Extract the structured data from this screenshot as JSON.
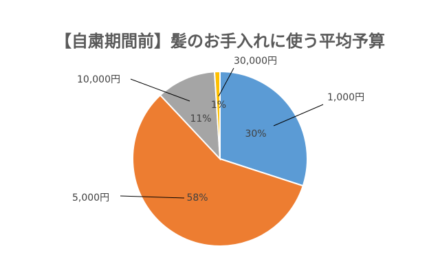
{
  "chart_data": {
    "type": "pie",
    "title": "【自粛期間前】髪のお手入れに使う平均予算",
    "categories": [
      "1,000円",
      "5,000円",
      "10,000円",
      "30,000円"
    ],
    "values": [
      30,
      58,
      11,
      1
    ],
    "data_labels": [
      "30%",
      "58%",
      "11%",
      "1%"
    ],
    "colors": [
      "#5B9BD5",
      "#ED7D31",
      "#A5A5A5",
      "#FFC000"
    ],
    "start_angle": "top, clockwise",
    "legend": "none"
  }
}
